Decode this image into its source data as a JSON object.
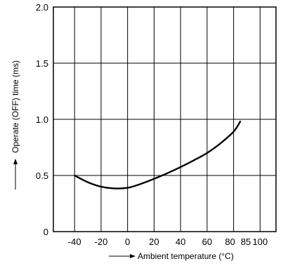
{
  "chart_data": {
    "type": "line",
    "xlabel": "Ambient temperature (°C)",
    "ylabel": "Operate (OFF) time (ms)",
    "xlim": [
      -56,
      112
    ],
    "ylim": [
      0,
      2.0
    ],
    "x_grid": [
      -60,
      -40,
      -20,
      0,
      20,
      40,
      60,
      80,
      100
    ],
    "y_grid": [
      0,
      0.5,
      1.0,
      1.5,
      2.0
    ],
    "x_ticks": [
      {
        "value": -40,
        "label": "-40"
      },
      {
        "value": -20,
        "label": "-20"
      },
      {
        "value": 0,
        "label": "0"
      },
      {
        "value": 20,
        "label": "20"
      },
      {
        "value": 40,
        "label": "40"
      },
      {
        "value": 60,
        "label": "60"
      },
      {
        "value": 80,
        "label": "80"
      },
      {
        "value": 85,
        "label": "85"
      },
      {
        "value": 100,
        "label": "100"
      }
    ],
    "y_ticks": [
      {
        "value": 0,
        "label": "0"
      },
      {
        "value": 0.5,
        "label": "0.5"
      },
      {
        "value": 1.0,
        "label": "1.0"
      },
      {
        "value": 1.5,
        "label": "1.5"
      },
      {
        "value": 2.0,
        "label": "2.0"
      }
    ],
    "grid": true,
    "series": [
      {
        "points": [
          [
            -40,
            0.5
          ],
          [
            -30,
            0.44
          ],
          [
            -20,
            0.4
          ],
          [
            -10,
            0.385
          ],
          [
            0,
            0.39
          ],
          [
            10,
            0.425
          ],
          [
            20,
            0.47
          ],
          [
            30,
            0.52
          ],
          [
            40,
            0.575
          ],
          [
            50,
            0.635
          ],
          [
            60,
            0.7
          ],
          [
            70,
            0.785
          ],
          [
            80,
            0.89
          ],
          [
            85,
            0.98
          ]
        ]
      }
    ]
  }
}
